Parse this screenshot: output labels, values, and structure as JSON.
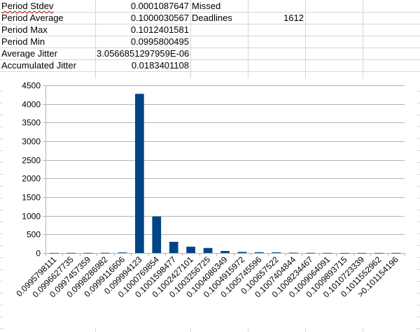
{
  "sheet": {
    "rows": [
      {
        "label_a": "Period Stdev",
        "value_b": "0.0001087647",
        "label_c": "Missed",
        "value_d": ""
      },
      {
        "label_a": "Period Average",
        "value_b": "0.1000030567",
        "label_c": "Deadlines",
        "value_d": "1612"
      },
      {
        "label_a": "Period Max",
        "value_b": "0.1012401581",
        "label_c": "",
        "value_d": ""
      },
      {
        "label_a": "Period Min",
        "value_b": "0.0995800495",
        "label_c": "",
        "value_d": ""
      },
      {
        "label_a": "Average Jitter",
        "value_b": "3.0566851297959E-06",
        "label_c": "",
        "value_d": ""
      },
      {
        "label_a": "Accumulated Jitter",
        "value_b": "0.0183401108",
        "label_c": "",
        "value_d": ""
      }
    ]
  },
  "colors": {
    "bar": "#004586",
    "grid": "#b3b3b3",
    "axis": "#b3b3b3",
    "cell_border": "#d6d6d6"
  },
  "chart_data": {
    "type": "bar",
    "title": "",
    "xlabel": "",
    "ylabel": "",
    "ylim": [
      0,
      4500
    ],
    "yticks": [
      "0",
      "500",
      "1000",
      "1500",
      "2000",
      "2500",
      "3000",
      "3500",
      "4000",
      "4500"
    ],
    "grid": true,
    "legend": "none",
    "categories": [
      "0.0995798111",
      "0.0996627735",
      "0.0997457359",
      "0.0998286982",
      "0.0999116606",
      "0.099994123",
      "0.1000769854",
      "0.1001598477",
      "0.1002427101",
      "0.1003256725",
      "0.1004086349",
      "0.1004915972",
      "0.1005745596",
      "0.100657522",
      "0.1007404844",
      "0.1008234467",
      "0.1009064091",
      "0.1009893715",
      "0.1010723339",
      "0.1011552962",
      ">0.10115419​6"
    ],
    "values": [
      2,
      3,
      4,
      6,
      15,
      4270,
      980,
      300,
      170,
      135,
      55,
      30,
      22,
      18,
      8,
      5,
      3,
      2,
      2,
      2,
      3
    ]
  }
}
